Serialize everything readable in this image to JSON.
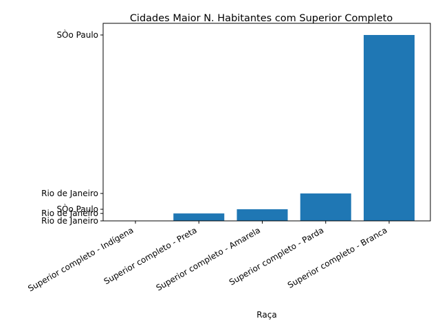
{
  "chart_data": {
    "type": "bar",
    "title": "Cidades Maior N. Habitantes com Superior Completo",
    "xlabel": "Raça",
    "ylabel": "",
    "categories": [
      "Superior completo - Indígena",
      "Superior completo - Preta",
      "Superior completo - Amarela",
      "Superior completo - Parda",
      "Superior completo - Branca"
    ],
    "values": [
      0.0,
      1.6,
      2.5,
      5.9,
      40.0
    ],
    "ylim": [
      0,
      40
    ],
    "y_ticks": [
      {
        "value": 0.0,
        "label": "Rio de Janeiro"
      },
      {
        "value": 1.6,
        "label": "Rio de Janeiro"
      },
      {
        "value": 2.5,
        "label": "SÒo Paulo"
      },
      {
        "value": 5.9,
        "label": "Rio de Janeiro"
      },
      {
        "value": 40.0,
        "label": "SÒo Paulo"
      }
    ],
    "bar_color": "#1f77b4",
    "grid": false,
    "legend": "none"
  }
}
